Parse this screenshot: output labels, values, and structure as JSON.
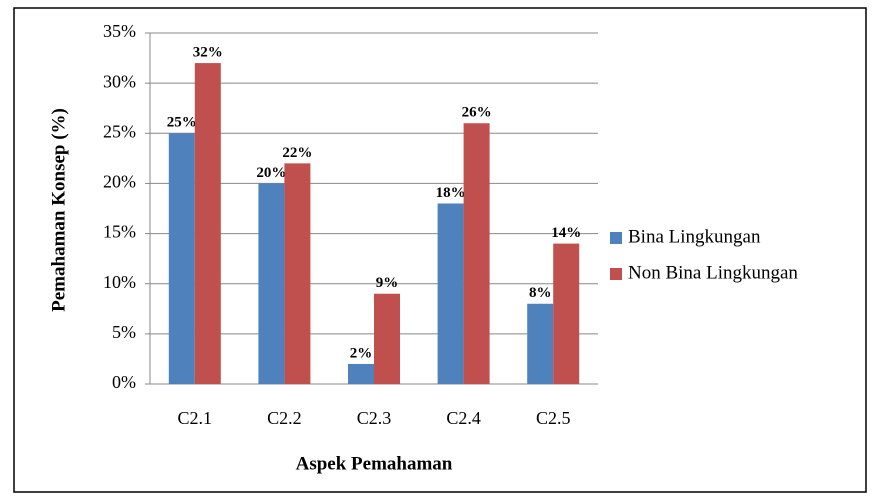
{
  "chart_data": {
    "type": "bar",
    "x_label": "Aspek Pemahaman",
    "y_label": "Pemahaman Konsep  (%)",
    "categories": [
      "C2.1",
      "C2.2",
      "C2.3",
      "C2.4",
      "C2.5"
    ],
    "series": [
      {
        "name": "Bina Lingkungan",
        "color": "#4f81bd",
        "values": [
          25,
          20,
          2,
          18,
          8
        ],
        "value_labels": [
          "25%",
          "20%",
          "2%",
          "18%",
          "8%"
        ]
      },
      {
        "name": "Non Bina Lingkungan",
        "color": "#c0504d",
        "values": [
          32,
          22,
          9,
          26,
          14
        ],
        "value_labels": [
          "32%",
          "22%",
          "9%",
          "26%",
          "14%"
        ]
      }
    ],
    "ylim": [
      0,
      35
    ],
    "yticks": [
      {
        "value": 0,
        "label": "0%"
      },
      {
        "value": 5,
        "label": "5%"
      },
      {
        "value": 10,
        "label": "10%"
      },
      {
        "value": 15,
        "label": "15%"
      },
      {
        "value": 20,
        "label": "20%"
      },
      {
        "value": 25,
        "label": "25%"
      },
      {
        "value": 30,
        "label": "30%"
      },
      {
        "value": 35,
        "label": "35%"
      }
    ],
    "grid": true,
    "legend": "right"
  }
}
